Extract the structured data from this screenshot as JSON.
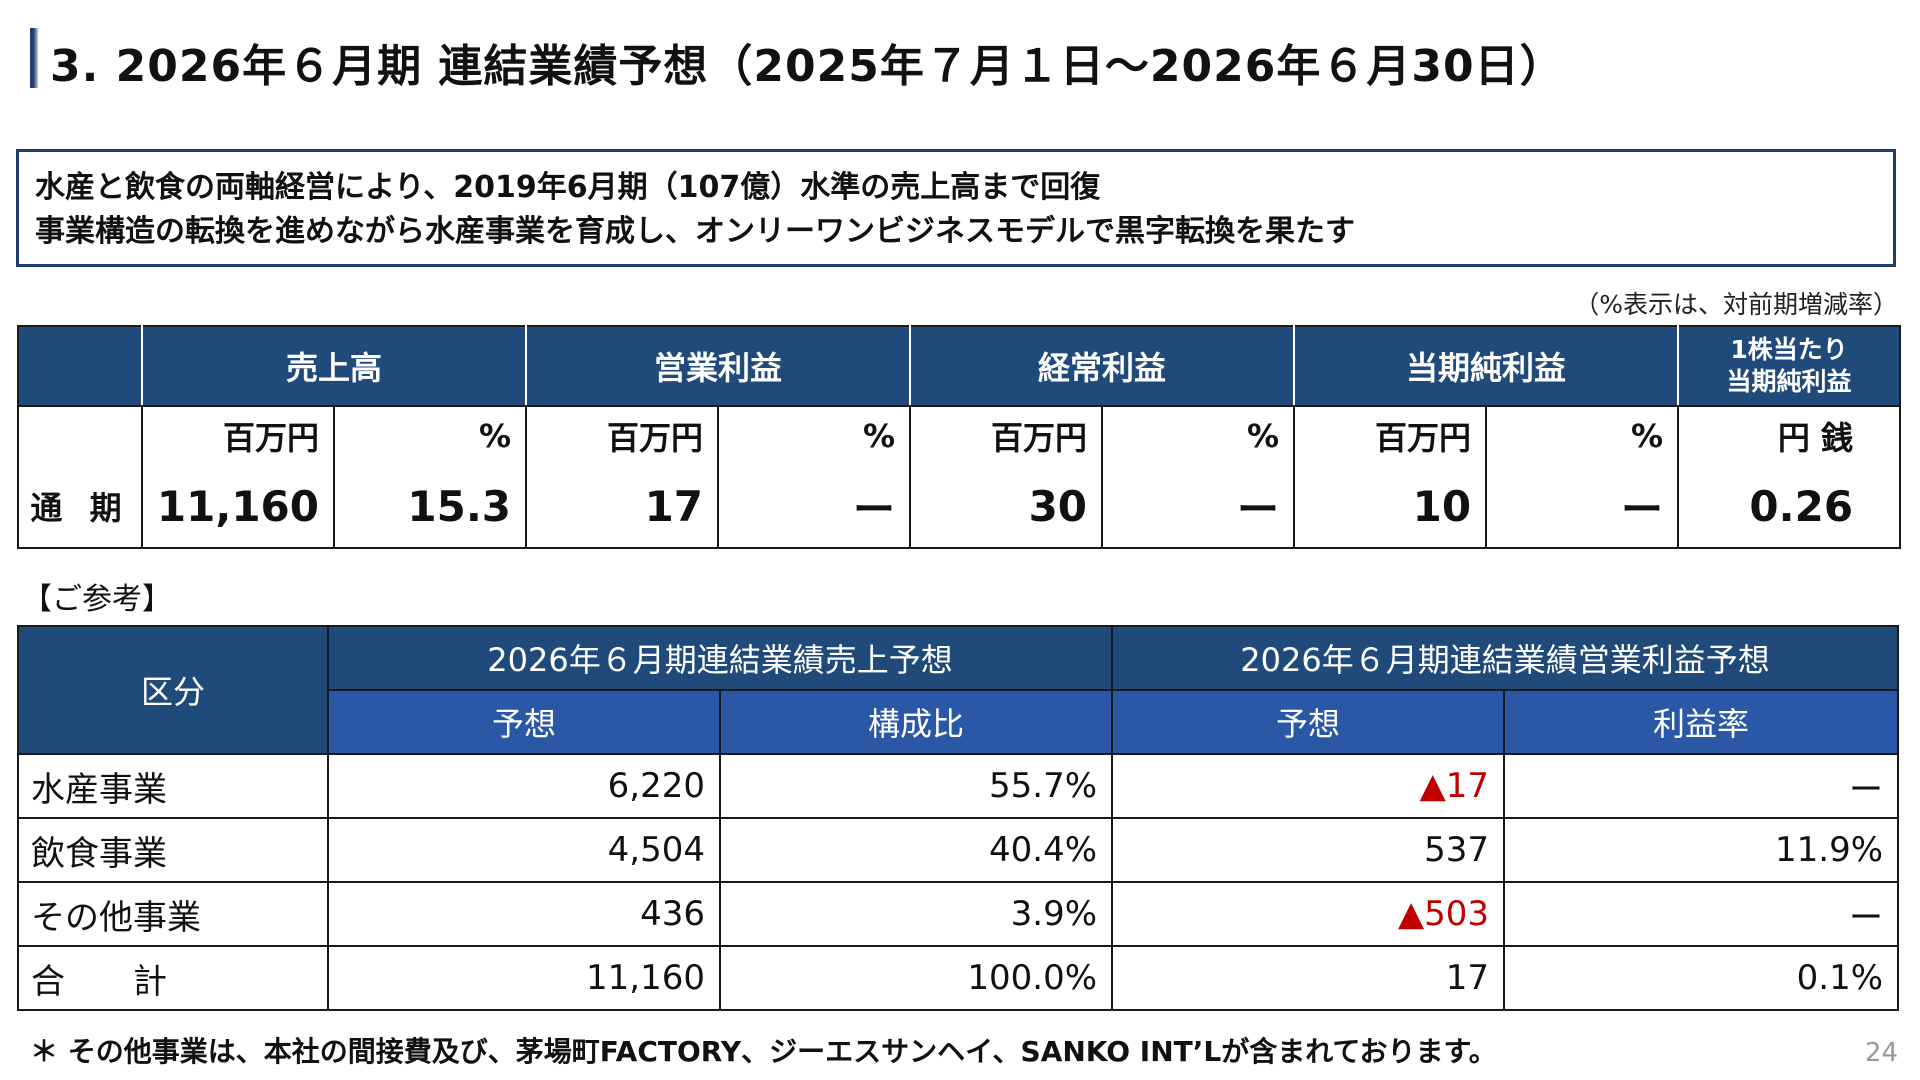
{
  "title": "3. 2026年６月期 連結業績予想（2025年７月１日～2026年６月30日）",
  "summary": {
    "line1": "水産と飲食の両軸経営により、2019年6月期（107億）水準の売上高まで回復",
    "line2": "事業構造の転換を進めながら水産事業を育成し、オンリーワンビジネスモデルで黒字転換を果たす"
  },
  "note": "（%表示は、対前期増減率）",
  "forecast_table": {
    "headers": {
      "sales": "売上高",
      "operating_profit": "営業利益",
      "ordinary_profit": "経常利益",
      "net_profit": "当期純利益",
      "eps_line1": "1株当たり",
      "eps_line2": "当期純利益"
    },
    "units": {
      "amount": "百万円",
      "pct": "%",
      "eps": "円 銭"
    },
    "row": {
      "label": "通 期",
      "sales": "11,160",
      "sales_pct": "15.3",
      "operating_profit": "17",
      "operating_pct": "ー",
      "ordinary_profit": "30",
      "ordinary_pct": "ー",
      "net_profit": "10",
      "net_pct": "ー",
      "eps": "0.26"
    }
  },
  "reference_label": "【ご参考】",
  "segment_table": {
    "header_segment": "区分",
    "header_sales": "2026年６月期連結業績売上予想",
    "header_op": "2026年６月期連結業績営業利益予想",
    "sub_forecast": "予想",
    "sub_composition": "構成比",
    "sub_forecast2": "予想",
    "sub_margin": "利益率",
    "rows": [
      {
        "name": "水産事業",
        "sales": "6,220",
        "ratio": "55.7%",
        "op": "▲17",
        "margin": "ー"
      },
      {
        "name": "飲食事業",
        "sales": "4,504",
        "ratio": "40.4%",
        "op": "537",
        "margin": "11.9%"
      },
      {
        "name": "その他事業",
        "sales": "436",
        "ratio": "3.9%",
        "op": "▲503",
        "margin": "ー"
      },
      {
        "name": "合　　計",
        "sales": "11,160",
        "ratio": "100.0%",
        "op": "17",
        "margin": "0.1%"
      }
    ]
  },
  "footnote": "＊ その他事業は、本社の間接費及び、茅場町FACTORY、ジーエスサンヘイ、SANKO INT’Lが含まれております。",
  "page_number": "24",
  "colors": {
    "header_dark": "#1f4a7a",
    "header_medium": "#2a58a6",
    "negative": "#c00000",
    "frame": "#1f3c6e"
  }
}
